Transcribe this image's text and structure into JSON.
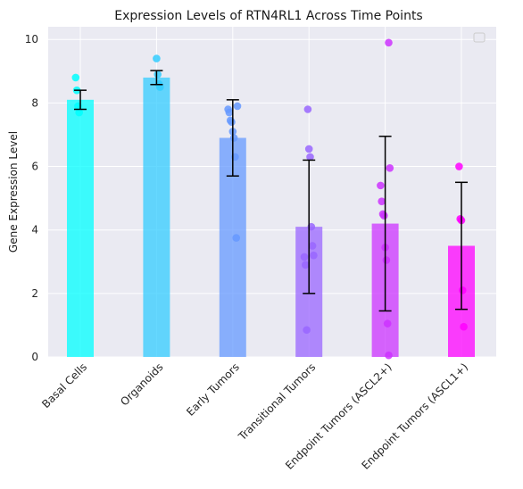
{
  "chart_data": {
    "type": "bar",
    "title": "Expression Levels of RTN4RL1 Across Time Points",
    "xlabel": "",
    "ylabel": "Gene Expression Level",
    "ylim": [
      0,
      10.4
    ],
    "yticks": [
      0,
      2,
      4,
      6,
      8,
      10
    ],
    "legend": "top-right (empty)",
    "grid": true,
    "categories": [
      "Basal Cells",
      "Organoids",
      "Early Tumors",
      "Transitional Tumors",
      "Endpoint Tumors (ASCL2+)",
      "Endpoint Tumors (ASCL1+)"
    ],
    "values": [
      8.1,
      8.8,
      6.9,
      4.1,
      4.2,
      3.5
    ],
    "errors": [
      0.3,
      0.22,
      1.2,
      2.1,
      2.75,
      2.0
    ],
    "colors": [
      "#00ffff",
      "#33ccff",
      "#6699ff",
      "#9966ff",
      "#cc33ff",
      "#ff00ff"
    ],
    "points": [
      [
        8.8,
        8.4,
        7.9,
        7.7
      ],
      [
        9.4,
        8.9,
        8.6,
        8.5
      ],
      [
        7.9,
        7.8,
        7.7,
        7.45,
        7.4,
        7.1,
        6.9,
        6.3,
        3.75
      ],
      [
        7.8,
        6.55,
        6.3,
        4.1,
        3.5,
        3.2,
        3.15,
        2.9,
        0.85
      ],
      [
        9.9,
        5.95,
        5.4,
        4.9,
        4.5,
        4.45,
        3.45,
        3.05,
        1.05,
        0.05
      ],
      [
        6.0,
        4.35,
        4.3,
        2.1,
        0.95
      ]
    ]
  }
}
